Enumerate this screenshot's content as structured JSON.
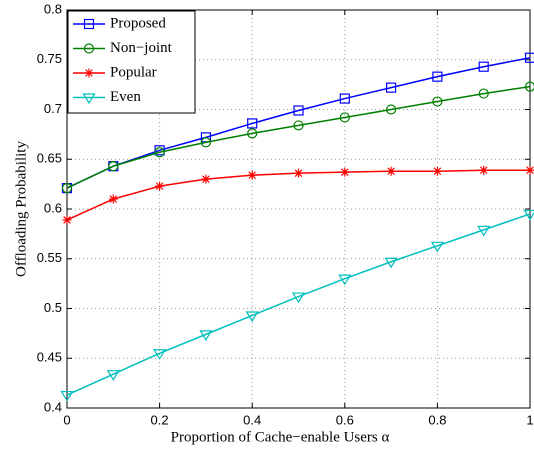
{
  "chart_data": {
    "type": "line",
    "xlabel": "Proportion of Cache−enable Users α",
    "ylabel": "Offloading Probability",
    "x": [
      0,
      0.1,
      0.2,
      0.3,
      0.4,
      0.5,
      0.6,
      0.7,
      0.8,
      0.9,
      1
    ],
    "series": [
      {
        "name": "Proposed",
        "color": "#0000ff",
        "marker": "square",
        "values": [
          0.621,
          0.643,
          0.659,
          0.672,
          0.686,
          0.699,
          0.711,
          0.722,
          0.733,
          0.743,
          0.752
        ]
      },
      {
        "name": "Non−joint",
        "color": "#008000",
        "marker": "circle",
        "values": [
          0.621,
          0.643,
          0.657,
          0.667,
          0.676,
          0.684,
          0.692,
          0.7,
          0.708,
          0.716,
          0.723
        ]
      },
      {
        "name": "Popular",
        "color": "#ff0000",
        "marker": "star",
        "values": [
          0.589,
          0.61,
          0.623,
          0.63,
          0.634,
          0.636,
          0.637,
          0.638,
          0.638,
          0.639,
          0.639
        ]
      },
      {
        "name": "Even",
        "color": "#00bfbf",
        "marker": "triangle-down",
        "values": [
          0.413,
          0.434,
          0.455,
          0.474,
          0.493,
          0.512,
          0.53,
          0.547,
          0.563,
          0.579,
          0.595
        ]
      }
    ],
    "xlim": [
      0,
      1
    ],
    "xticks": [
      0,
      0.2,
      0.4,
      0.6,
      0.8,
      1
    ],
    "ylim": [
      0.4,
      0.8
    ],
    "yticks": [
      0.4,
      0.45,
      0.5,
      0.55,
      0.6,
      0.65,
      0.7,
      0.75,
      0.8
    ],
    "grid": true,
    "legend": "upper-left"
  }
}
